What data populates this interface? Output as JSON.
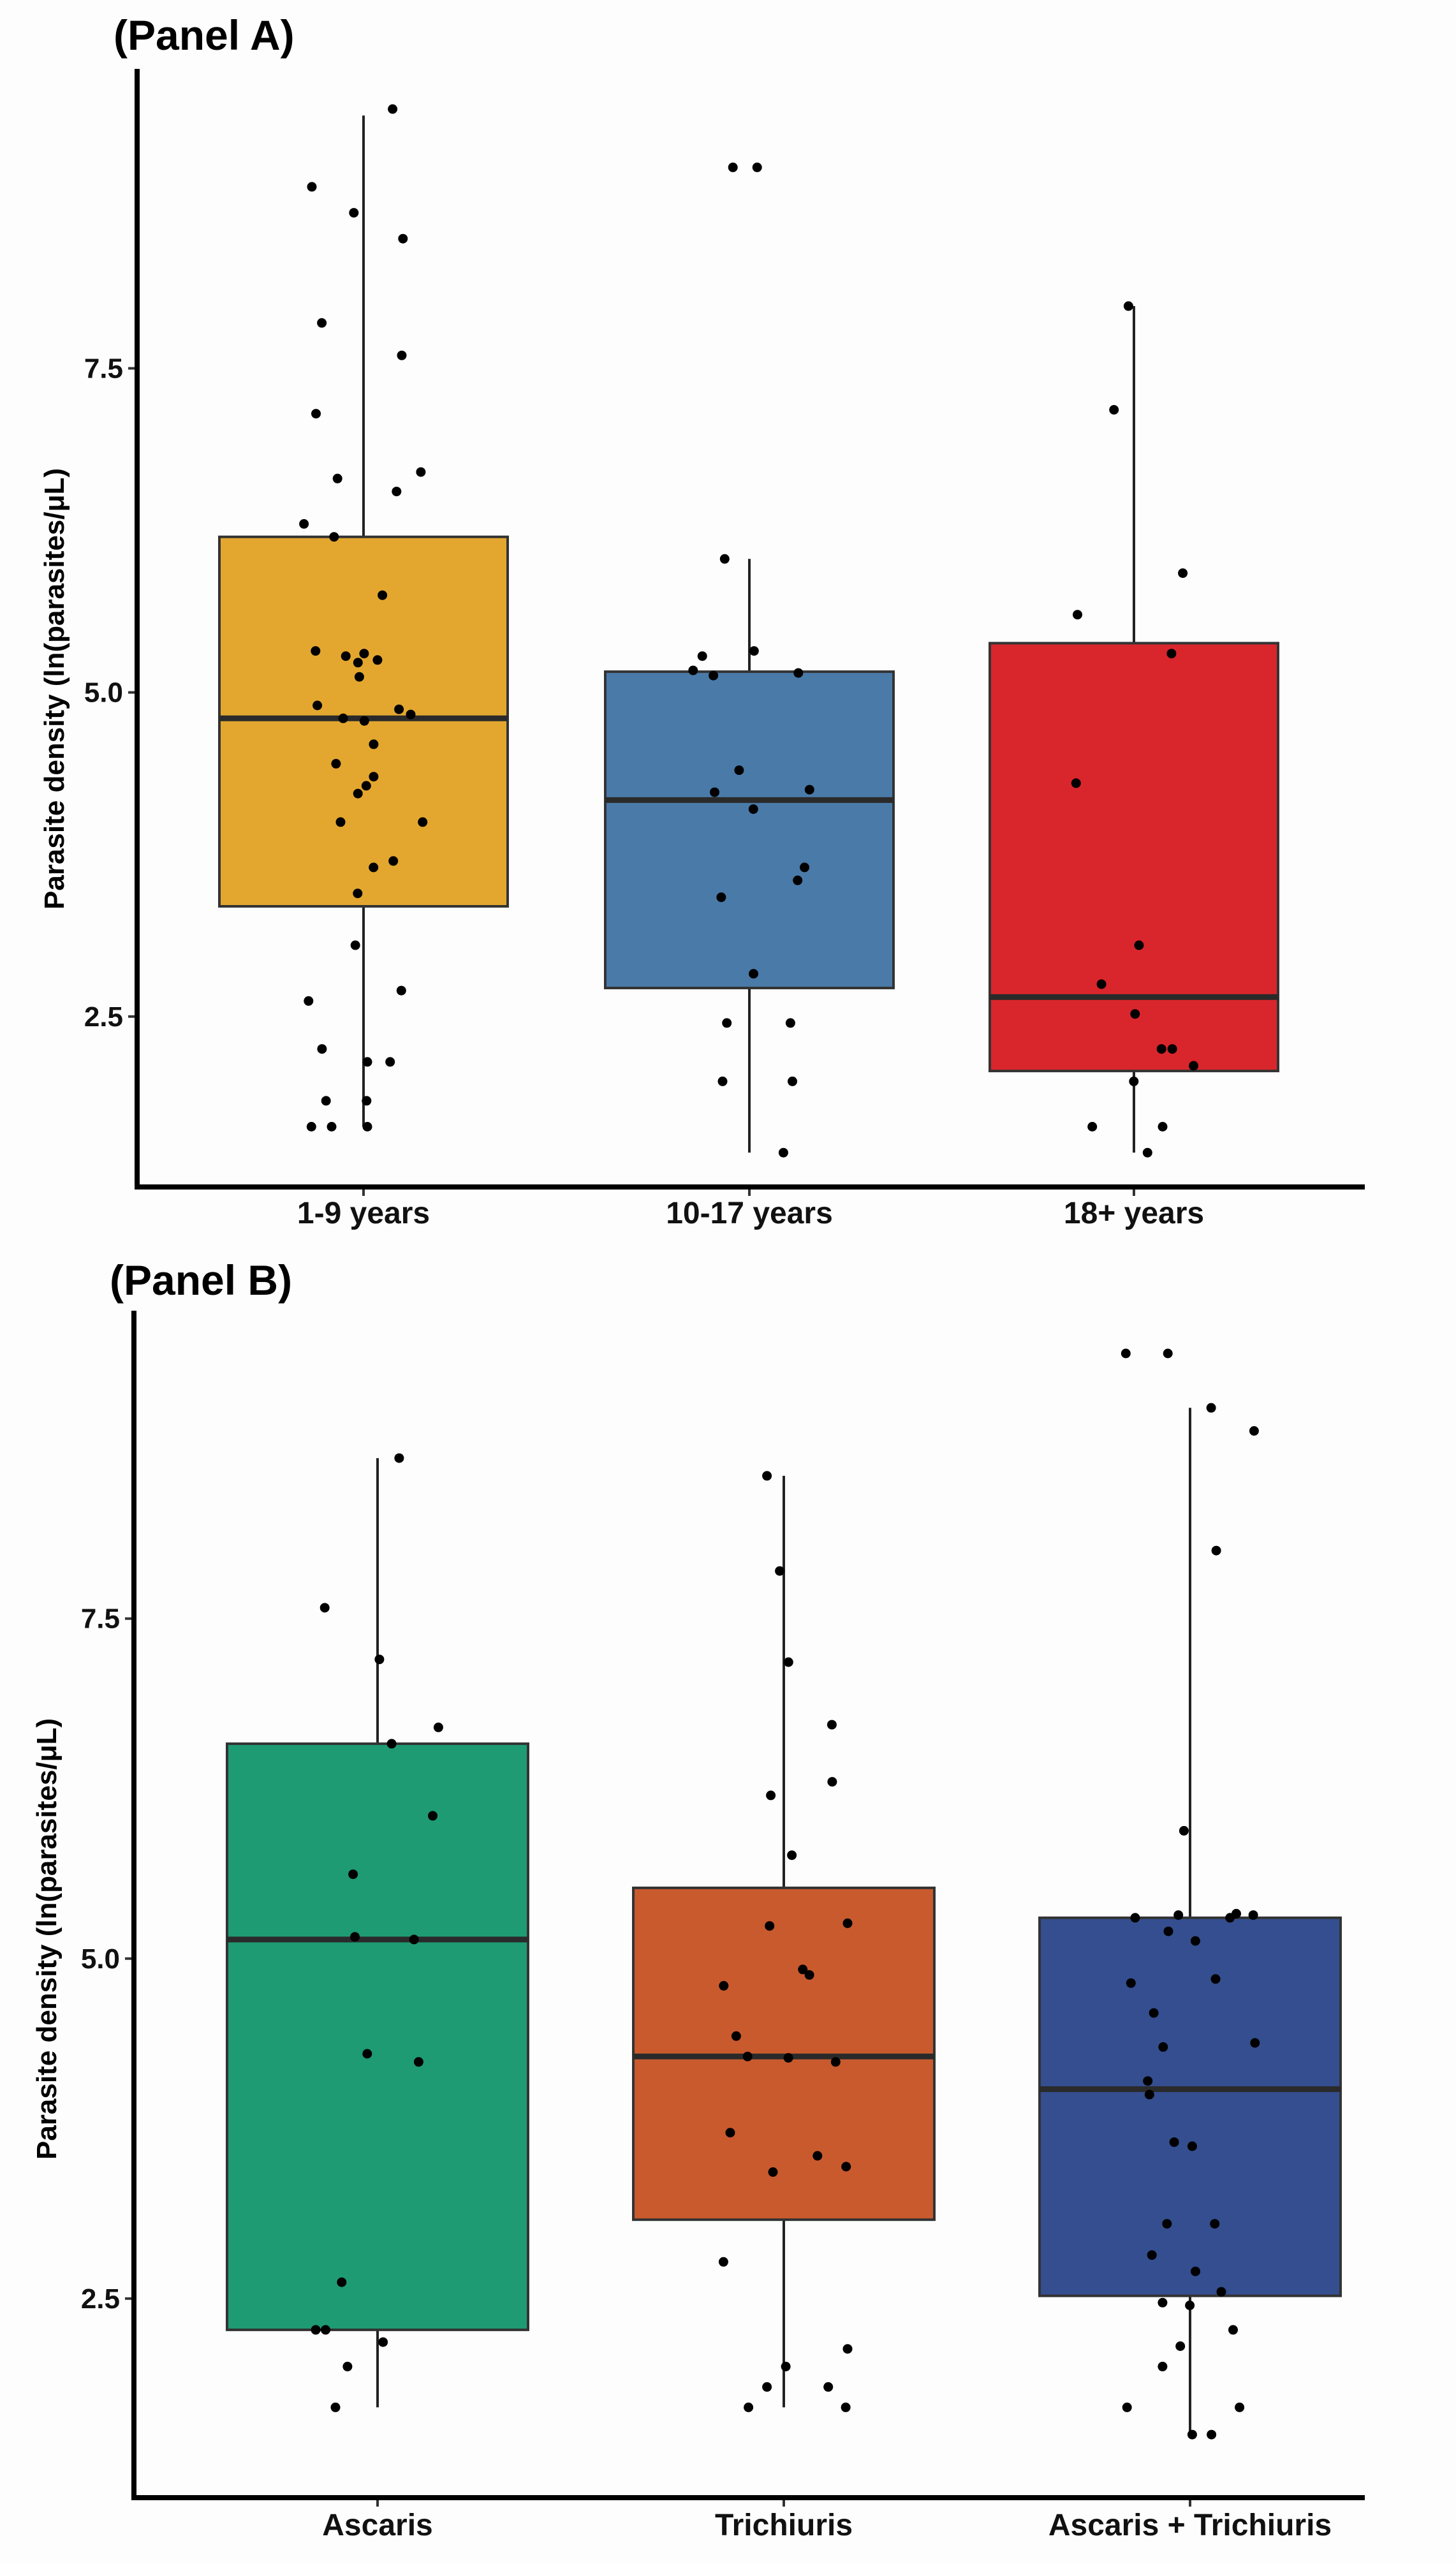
{
  "chart_data": [
    {
      "type": "box",
      "title": "(Panel A)",
      "xlabel": "",
      "ylabel": "Parasite density (ln(parasites/μL)",
      "ylim": [
        1.2,
        9.8
      ],
      "yticks": [
        2.5,
        5.0,
        7.5
      ],
      "ytick_labels": [
        "2.5",
        "5.0",
        "7.5"
      ],
      "grid": false,
      "categories": [
        "1-9 years",
        "10-17 years",
        "18+ years"
      ],
      "colors": [
        "#E3A72F",
        "#4A7AA8",
        "#D9262C"
      ],
      "boxes": [
        {
          "q1": 3.35,
          "median": 4.8,
          "q3": 6.2,
          "whisker_low": 1.65,
          "whisker_high": 9.45
        },
        {
          "q1": 2.72,
          "median": 4.17,
          "q3": 5.16,
          "whisker_low": 1.45,
          "whisker_high": 6.03
        },
        {
          "q1": 2.08,
          "median": 2.65,
          "q3": 5.38,
          "whisker_low": 1.45,
          "whisker_high": 7.98
        }
      ],
      "points": [
        [
          9.5,
          8.9,
          8.7,
          8.5,
          7.85,
          7.6,
          7.15,
          6.7,
          6.65,
          6.55,
          6.3,
          6.2,
          5.75,
          5.3,
          5.32,
          5.28,
          5.25,
          5.23,
          5.12,
          4.9,
          4.87,
          4.83,
          4.8,
          4.78,
          4.6,
          4.45,
          4.35,
          4.28,
          4.22,
          4.0,
          4.0,
          3.7,
          3.65,
          3.45,
          3.05,
          2.7,
          2.62,
          2.25,
          2.15,
          2.15,
          1.85,
          1.85,
          1.65,
          1.65,
          1.65
        ],
        [
          9.05,
          9.05,
          6.03,
          5.32,
          5.28,
          5.17,
          5.15,
          5.13,
          4.4,
          4.25,
          4.23,
          4.1,
          3.65,
          3.55,
          3.42,
          2.83,
          2.45,
          2.45,
          2.0,
          2.0,
          1.45
        ],
        [
          7.98,
          7.18,
          5.92,
          5.6,
          5.3,
          4.3,
          3.05,
          2.75,
          2.52,
          2.25,
          2.25,
          2.12,
          2.0,
          1.65,
          1.65,
          1.45
        ]
      ]
    },
    {
      "type": "box",
      "title": "(Panel B)",
      "xlabel": "",
      "ylabel": "Parasite density (ln(parasites/μL)",
      "ylim": [
        1.05,
        9.75
      ],
      "yticks": [
        2.5,
        5.0,
        7.5
      ],
      "ytick_labels": [
        "2.5",
        "5.0",
        "7.5"
      ],
      "grid": false,
      "categories": [
        "Ascaris",
        "Trichiuris",
        "Ascaris + Trichiuris"
      ],
      "colors": [
        "#1E9B73",
        "#C95A2E",
        "#344E8F"
      ],
      "boxes": [
        {
          "q1": 2.27,
          "median": 5.14,
          "q3": 6.58,
          "whisker_low": 1.7,
          "whisker_high": 8.68
        },
        {
          "q1": 3.08,
          "median": 4.28,
          "q3": 5.52,
          "whisker_low": 1.7,
          "whisker_high": 8.55
        },
        {
          "q1": 2.52,
          "median": 4.04,
          "q3": 5.3,
          "whisker_low": 1.5,
          "whisker_high": 9.05
        }
      ],
      "points": [
        [
          8.68,
          7.58,
          7.2,
          6.7,
          6.58,
          6.05,
          5.62,
          5.16,
          5.14,
          4.3,
          4.24,
          2.62,
          2.27,
          2.27,
          2.18,
          2.0,
          1.7
        ],
        [
          8.55,
          7.85,
          7.18,
          6.72,
          6.3,
          6.2,
          5.76,
          5.26,
          5.24,
          4.92,
          4.88,
          4.8,
          4.43,
          4.28,
          4.27,
          4.24,
          3.72,
          3.55,
          3.47,
          3.43,
          2.77,
          2.13,
          2.0,
          1.85,
          1.85,
          1.7,
          1.7
        ],
        [
          9.45,
          9.45,
          9.05,
          8.88,
          8.0,
          5.94,
          5.32,
          5.33,
          5.3,
          5.3,
          5.32,
          5.2,
          5.13,
          4.85,
          4.82,
          4.6,
          4.38,
          4.35,
          4.1,
          4.0,
          3.65,
          3.62,
          3.05,
          3.05,
          2.82,
          2.7,
          2.55,
          2.47,
          2.45,
          2.27,
          2.15,
          2.0,
          1.7,
          1.7,
          1.5,
          1.5
        ]
      ]
    }
  ]
}
